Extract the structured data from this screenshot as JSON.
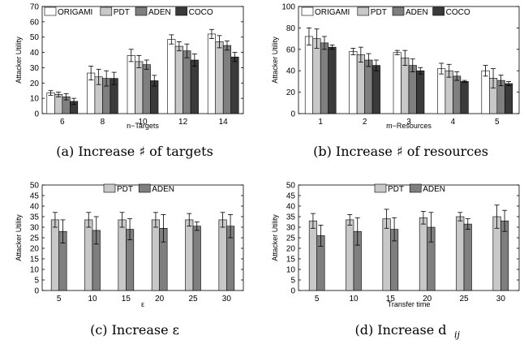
{
  "chart_data": [
    {
      "type": "bar",
      "caption": "(a) Increase ♯ of targets",
      "xlabel": "n−Targets",
      "ylabel": "Attacker Utility",
      "ylim": [
        0,
        70
      ],
      "yticks": [
        0,
        10,
        20,
        30,
        40,
        50,
        60,
        70
      ],
      "categories": [
        "6",
        "8",
        "10",
        "12",
        "14"
      ],
      "legend_position": "top",
      "series": [
        {
          "name": "ORIGAMI",
          "color": "#ffffff",
          "values": [
            13.5,
            26.5,
            38,
            48.5,
            52
          ],
          "errors": [
            1.5,
            4.5,
            4,
            3,
            3
          ]
        },
        {
          "name": "PDT",
          "color": "#c8c8c8",
          "values": [
            12.5,
            24,
            34,
            44,
            47
          ],
          "errors": [
            1.5,
            5,
            4,
            3,
            4
          ]
        },
        {
          "name": "ADEN",
          "color": "#7f7f7f",
          "values": [
            11,
            23,
            32,
            41,
            44.5
          ],
          "errors": [
            2,
            5,
            3,
            4.5,
            3
          ]
        },
        {
          "name": "COCO",
          "color": "#3a3a3a",
          "values": [
            8,
            23,
            21.5,
            35,
            37
          ],
          "errors": [
            2,
            4,
            3.5,
            4,
            3
          ]
        }
      ]
    },
    {
      "type": "bar",
      "caption": "(b) Increase ♯ of resources",
      "xlabel": "m−Resources",
      "ylabel": "Attacker Utility",
      "ylim": [
        0,
        100
      ],
      "yticks": [
        0,
        20,
        40,
        60,
        80,
        100
      ],
      "categories": [
        "1",
        "2",
        "3",
        "4",
        "5"
      ],
      "legend_position": "top",
      "series": [
        {
          "name": "ORIGAMI",
          "color": "#ffffff",
          "values": [
            72,
            58,
            57,
            42,
            40
          ],
          "errors": [
            8,
            3,
            2,
            5,
            5
          ]
        },
        {
          "name": "PDT",
          "color": "#c8c8c8",
          "values": [
            70,
            55,
            52,
            40,
            33
          ],
          "errors": [
            9,
            7,
            7,
            6,
            9
          ]
        },
        {
          "name": "ADEN",
          "color": "#7f7f7f",
          "values": [
            66,
            50,
            45,
            35,
            31
          ],
          "errors": [
            6,
            6,
            6,
            4,
            5
          ]
        },
        {
          "name": "COCO",
          "color": "#3a3a3a",
          "values": [
            62,
            45,
            40,
            30,
            28
          ],
          "errors": [
            2,
            5,
            3,
            1,
            2
          ]
        }
      ]
    },
    {
      "type": "bar",
      "caption": "(c) Increase ε",
      "xlabel": "ε",
      "ylabel": "Attacker Utility",
      "ylim": [
        0,
        50
      ],
      "yticks": [
        0,
        5,
        10,
        15,
        20,
        25,
        30,
        35,
        40,
        45,
        50
      ],
      "categories": [
        "5",
        "10",
        "15",
        "20",
        "25",
        "30"
      ],
      "legend_position": "top",
      "series": [
        {
          "name": "PDT",
          "color": "#c8c8c8",
          "values": [
            33.5,
            33.5,
            33.5,
            33.5,
            33.5,
            33.5
          ],
          "errors": [
            3.5,
            3.5,
            3.5,
            3.5,
            3,
            3.5
          ]
        },
        {
          "name": "ADEN",
          "color": "#7f7f7f",
          "values": [
            28,
            28.5,
            29,
            29.5,
            30.5,
            30.5
          ],
          "errors": [
            5.5,
            6.5,
            5,
            6.5,
            2,
            5.5
          ]
        }
      ]
    },
    {
      "type": "bar",
      "caption": "(d) Increase d",
      "caption_subscript": "ij",
      "xlabel": "Transfer time",
      "ylabel": "Attacker Utility",
      "ylim": [
        0,
        50
      ],
      "yticks": [
        0,
        5,
        10,
        15,
        20,
        25,
        30,
        35,
        40,
        45,
        50
      ],
      "categories": [
        "5",
        "10",
        "15",
        "20",
        "25",
        "30"
      ],
      "legend_position": "top",
      "series": [
        {
          "name": "PDT",
          "color": "#c8c8c8",
          "values": [
            33,
            33.5,
            34,
            34.5,
            35,
            35
          ],
          "errors": [
            3.5,
            2.5,
            4.5,
            3,
            2,
            5.5
          ]
        },
        {
          "name": "ADEN",
          "color": "#7f7f7f",
          "values": [
            26,
            28,
            29,
            30,
            31.5,
            33
          ],
          "errors": [
            5,
            6.5,
            5.5,
            7,
            2.5,
            5
          ]
        }
      ]
    }
  ]
}
